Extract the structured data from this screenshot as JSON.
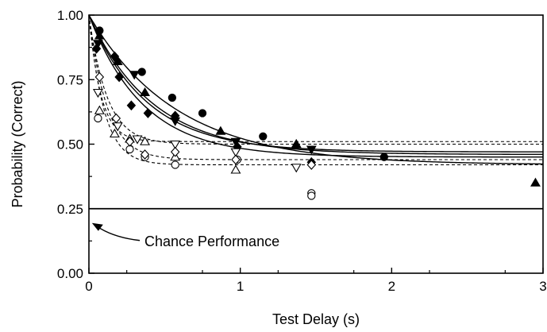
{
  "chart_data": {
    "type": "scatter",
    "xlabel": "Test Delay (s)",
    "ylabel": "Probability (Correct)",
    "xlim": [
      0,
      3
    ],
    "ylim": [
      0,
      1
    ],
    "xticks": [
      "0",
      "1",
      "2",
      "3"
    ],
    "yticks": [
      "0.00",
      "0.25",
      "0.50",
      "0.75",
      "1.00"
    ],
    "grid": false,
    "legend": "none",
    "chance_level": 0.25,
    "annotation": "Chance Performance",
    "series": [
      {
        "marker": "filled-circle",
        "x": [
          0.07,
          0.35,
          0.55,
          0.75,
          1.15,
          1.95
        ],
        "y": [
          0.94,
          0.78,
          0.68,
          0.62,
          0.53,
          0.45
        ],
        "fit": {
          "style": "solid",
          "a": 0.42,
          "b": 0.58,
          "tau": 0.58
        }
      },
      {
        "marker": "filled-triangle-down",
        "x": [
          0.06,
          0.3,
          0.57,
          0.97,
          1.47
        ],
        "y": [
          0.89,
          0.77,
          0.59,
          0.51,
          0.48
        ],
        "fit": {
          "style": "solid",
          "a": 0.47,
          "b": 0.53,
          "tau": 0.38
        }
      },
      {
        "marker": "filled-triangle-up",
        "x": [
          0.07,
          0.19,
          0.37,
          0.87,
          1.37,
          2.95
        ],
        "y": [
          0.92,
          0.82,
          0.7,
          0.55,
          0.5,
          0.35
        ],
        "fit": {
          "style": "solid",
          "a": 0.46,
          "b": 0.54,
          "tau": 0.42
        }
      },
      {
        "marker": "filled-diamond",
        "x": [
          0.05,
          0.17,
          0.2,
          0.28,
          0.39,
          0.57,
          0.98,
          1.47
        ],
        "y": [
          0.87,
          0.84,
          0.76,
          0.65,
          0.62,
          0.61,
          0.49,
          0.43
        ],
        "fit": {
          "style": "solid",
          "a": 0.45,
          "b": 0.55,
          "tau": 0.36
        }
      },
      {
        "marker": "open-circle",
        "x": [
          0.06,
          0.27,
          0.37,
          0.57,
          0.98,
          1.47,
          1.47
        ],
        "y": [
          0.6,
          0.48,
          0.45,
          0.42,
          0.44,
          0.31,
          0.3
        ],
        "fit": {
          "style": "dashed",
          "a": 0.42,
          "b": 0.58,
          "tau": 0.1
        }
      },
      {
        "marker": "open-triangle-down",
        "x": [
          0.06,
          0.19,
          0.32,
          0.57,
          0.97,
          1.37
        ],
        "y": [
          0.7,
          0.57,
          0.52,
          0.5,
          0.47,
          0.41
        ],
        "fit": {
          "style": "dashed",
          "a": 0.5,
          "b": 0.5,
          "tau": 0.12
        }
      },
      {
        "marker": "open-triangle-up",
        "x": [
          0.07,
          0.17,
          0.27,
          0.37,
          0.57,
          0.97
        ],
        "y": [
          0.63,
          0.54,
          0.52,
          0.51,
          0.45,
          0.4
        ],
        "fit": {
          "style": "dashed",
          "a": 0.51,
          "b": 0.49,
          "tau": 0.08
        }
      },
      {
        "marker": "open-diamond",
        "x": [
          0.07,
          0.18,
          0.27,
          0.37,
          0.57,
          0.97,
          1.47
        ],
        "y": [
          0.76,
          0.6,
          0.51,
          0.46,
          0.47,
          0.44,
          0.42
        ],
        "fit": {
          "style": "dashed",
          "a": 0.44,
          "b": 0.56,
          "tau": 0.12
        }
      }
    ]
  }
}
